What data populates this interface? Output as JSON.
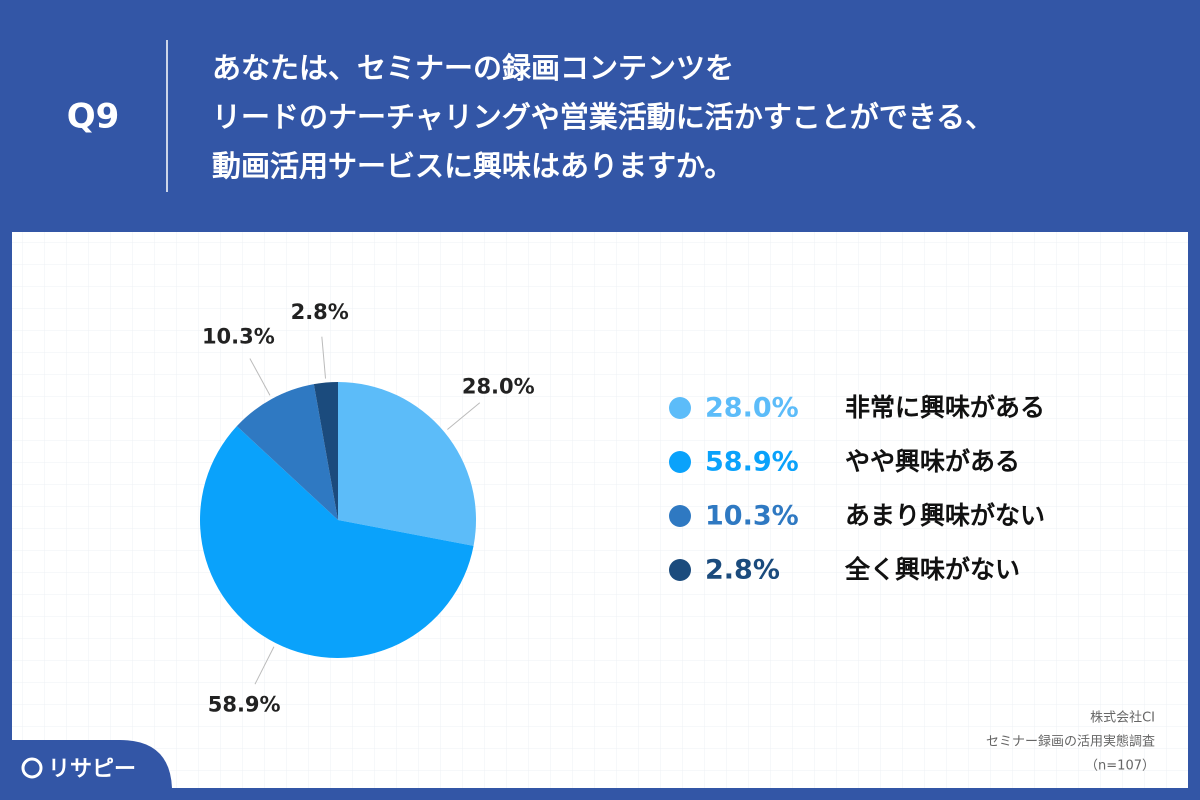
{
  "chart_data": {
    "type": "pie",
    "question": "Q9",
    "title": [
      "あなたは、セミナーの録画コンテンツを",
      "リードのナーチャリングや営業活動に活かすことができる、",
      "動画活用サービスに興味はありますか。"
    ],
    "categories": [
      "非常に興味がある",
      "やや興味がある",
      "あまり興味がない",
      "全く興味がない"
    ],
    "values": [
      28.0,
      58.9,
      10.3,
      2.8
    ],
    "value_labels": [
      "28.0%",
      "58.9%",
      "10.3%",
      "2.8%"
    ],
    "colors": [
      "#5cbcf9",
      "#0aa2fb",
      "#2f79c2",
      "#1b4b7d"
    ],
    "source": [
      "株式会社CI",
      "セミナー録画の活用実態調査",
      "（n=107）"
    ],
    "logo": "リサピー"
  }
}
